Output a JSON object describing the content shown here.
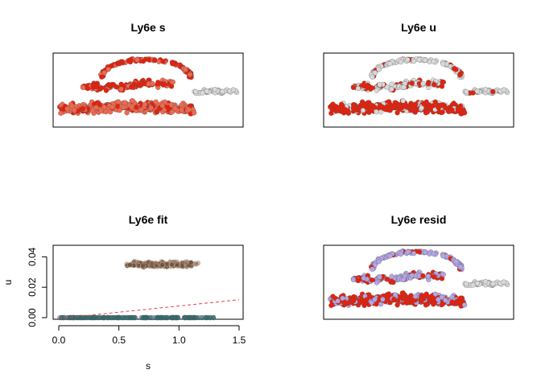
{
  "colors": {
    "grey": "#d9d9d9",
    "red": "#e8200c",
    "salmon": "#f06a4f",
    "lavender": "#b3a6e6",
    "brown": "#6b4a33",
    "teal": "#2e6b6b",
    "fit_line": "#e8404a"
  },
  "chart_data": [
    {
      "type": "scatter",
      "title": "Ly6e s",
      "description_colors": [
        "red",
        "salmon",
        "grey"
      ]
    },
    {
      "type": "scatter",
      "title": "Ly6e u",
      "description_colors": [
        "red",
        "grey"
      ]
    },
    {
      "type": "scatter",
      "title": "Ly6e fit",
      "xlabel": "s",
      "ylabel": "u",
      "xlim": [
        0,
        1.5
      ],
      "ylim": [
        0,
        0.045
      ],
      "xticks": [
        "0.0",
        "0.5",
        "1.0",
        "1.5"
      ],
      "yticks": [
        "0.00",
        "0.02",
        "0.04"
      ],
      "fit_line": {
        "x": [
          0,
          1.5
        ],
        "y": [
          -0.002,
          0.0118
        ],
        "style": "dashed"
      },
      "clusters": [
        {
          "x_range": [
            0.6,
            1.1
          ],
          "y_center": 0.035,
          "y_spread": 0.0025,
          "color": "brown"
        },
        {
          "x_range": [
            0.0,
            1.3
          ],
          "y_center": 0.0,
          "y_spread": 0.0,
          "color": "teal"
        }
      ]
    },
    {
      "type": "scatter",
      "title": "Ly6e resid",
      "description_colors": [
        "red",
        "lavender",
        "grey"
      ]
    }
  ]
}
